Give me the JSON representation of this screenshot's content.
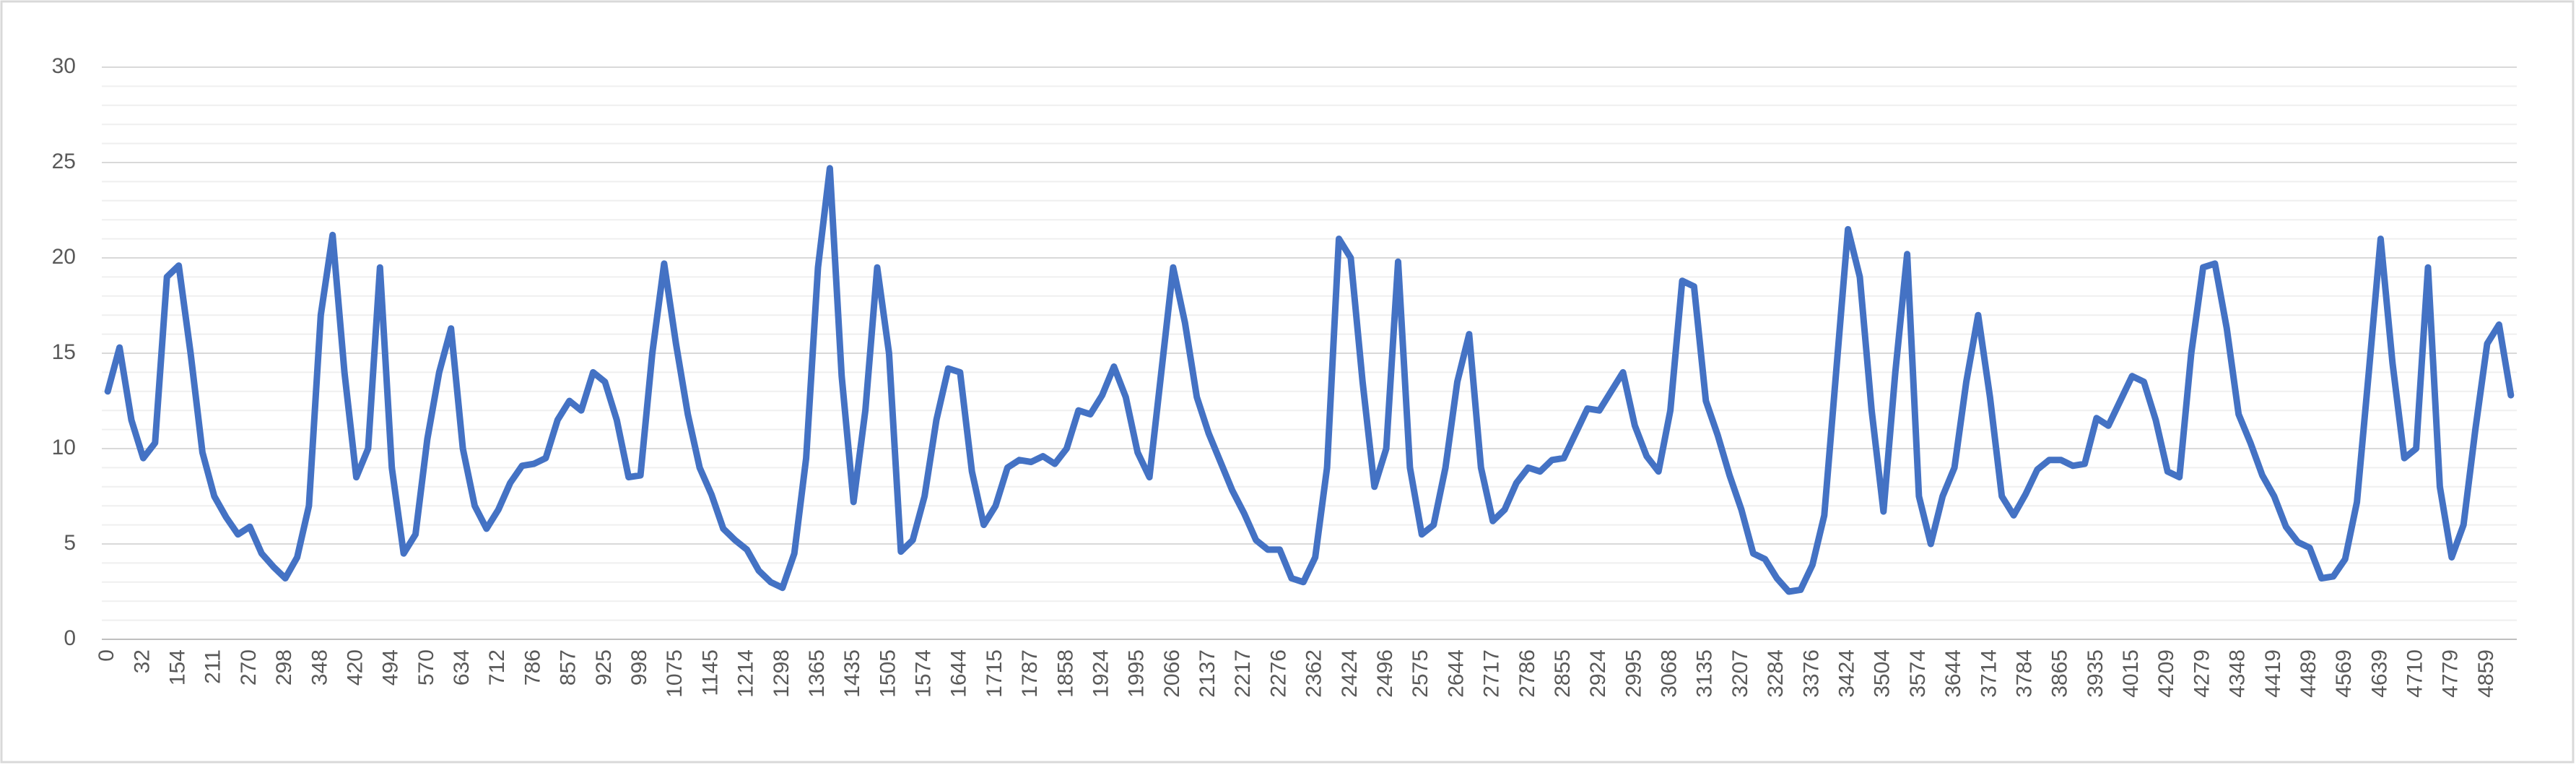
{
  "chart_data": {
    "type": "line",
    "categories": [
      0,
      null,
      null,
      32,
      null,
      null,
      154,
      null,
      null,
      211,
      null,
      null,
      270,
      null,
      null,
      298,
      null,
      null,
      348,
      null,
      null,
      420,
      null,
      null,
      494,
      null,
      null,
      570,
      null,
      null,
      634,
      null,
      null,
      712,
      null,
      null,
      786,
      null,
      null,
      857,
      null,
      null,
      925,
      null,
      null,
      998,
      null,
      null,
      1075,
      null,
      null,
      1145,
      null,
      null,
      1214,
      null,
      null,
      1298,
      null,
      null,
      1365,
      null,
      null,
      1435,
      null,
      null,
      1505,
      null,
      null,
      1574,
      null,
      null,
      1644,
      null,
      null,
      1715,
      null,
      null,
      1787,
      null,
      null,
      1858,
      null,
      null,
      1924,
      null,
      null,
      1995,
      null,
      null,
      2066,
      null,
      null,
      2137,
      null,
      null,
      2217,
      null,
      null,
      2276,
      null,
      null,
      2362,
      null,
      null,
      2424,
      null,
      null,
      2496,
      null,
      null,
      2575,
      null,
      null,
      2644,
      null,
      null,
      2717,
      null,
      null,
      2786,
      null,
      null,
      2855,
      null,
      null,
      2924,
      null,
      null,
      2995,
      null,
      null,
      3068,
      null,
      null,
      3135,
      null,
      null,
      3207,
      null,
      null,
      3284,
      null,
      null,
      3376,
      null,
      null,
      3424,
      null,
      null,
      3504,
      null,
      null,
      3574,
      null,
      null,
      3644,
      null,
      null,
      3714,
      null,
      null,
      3784,
      null,
      null,
      3865,
      null,
      null,
      3935,
      null,
      null,
      4015,
      null,
      null,
      4209,
      null,
      null,
      4279,
      null,
      null,
      4348,
      null,
      null,
      4419,
      null,
      null,
      4489,
      null,
      null,
      4569,
      null,
      null,
      4639,
      null,
      null,
      4710,
      null,
      null,
      4779,
      null,
      null,
      4859,
      null,
      null
    ],
    "series": [
      {
        "color": "#4472c4",
        "values": [
          13,
          15.3,
          11.5,
          9.5,
          10.3,
          19,
          19.6,
          15,
          9.8,
          7.5,
          6.4,
          5.5,
          5.9,
          4.5,
          3.8,
          3.2,
          4.3,
          7,
          17,
          21.2,
          14,
          8.5,
          10,
          19.5,
          9,
          4.5,
          5.5,
          10.5,
          14,
          16.3,
          10,
          7,
          5.8,
          6.8,
          8.2,
          9.1,
          9.2,
          9.5,
          11.5,
          12.5,
          12,
          14,
          13.5,
          11.5,
          8.5,
          8.6,
          15,
          19.7,
          15.5,
          11.8,
          9,
          7.6,
          5.8,
          5.2,
          4.7,
          3.6,
          3,
          2.7,
          4.5,
          9.5,
          19.5,
          24.7,
          13.8,
          7.2,
          12,
          19.5,
          15,
          4.6,
          5.2,
          7.5,
          11.5,
          14.2,
          14,
          8.8,
          6,
          7,
          9,
          9.4,
          9.3,
          9.6,
          9.2,
          10,
          12,
          11.8,
          12.8,
          14.3,
          12.7,
          9.8,
          8.5,
          14,
          19.5,
          16.6,
          12.7,
          10.8,
          9.3,
          7.8,
          6.6,
          5.2,
          4.7,
          4.7,
          3.2,
          3,
          4.3,
          9,
          21,
          20,
          13.5,
          8,
          10,
          19.8,
          9,
          5.5,
          6,
          9,
          13.5,
          16,
          9,
          6.2,
          6.8,
          8.2,
          9,
          8.8,
          9.4,
          9.5,
          10.8,
          12.1,
          12,
          13,
          14,
          11.2,
          9.6,
          8.8,
          12,
          18.8,
          18.5,
          12.5,
          10.7,
          8.6,
          6.8,
          4.5,
          4.2,
          3.2,
          2.5,
          2.6,
          3.9,
          6.5,
          14,
          21.5,
          19,
          12,
          6.7,
          14,
          20.2,
          7.5,
          5,
          7.5,
          9,
          13.5,
          17,
          12.7,
          7.5,
          6.5,
          7.6,
          8.9,
          9.4,
          9.4,
          9.1,
          9.2,
          11.6,
          11.2,
          12.5,
          13.8,
          13.5,
          11.5,
          8.8,
          8.5,
          15,
          19.5,
          19.7,
          16.3,
          11.8,
          10.3,
          8.6,
          7.5,
          5.9,
          5.1,
          4.8,
          3.2,
          3.3,
          4.2,
          7.2,
          14,
          21,
          14.5,
          9.5,
          10,
          19.5,
          8,
          4.3,
          6,
          11,
          15.5,
          16.5,
          12.8
        ]
      }
    ],
    "ylim": [
      0,
      30
    ],
    "yticks": [
      0,
      5,
      10,
      15,
      20,
      25,
      30
    ],
    "minor_yticks": [
      1,
      2,
      3,
      4,
      6,
      7,
      8,
      9,
      11,
      12,
      13,
      14,
      16,
      17,
      18,
      19,
      21,
      22,
      23,
      24,
      26,
      27,
      28,
      29
    ],
    "grid": true
  }
}
